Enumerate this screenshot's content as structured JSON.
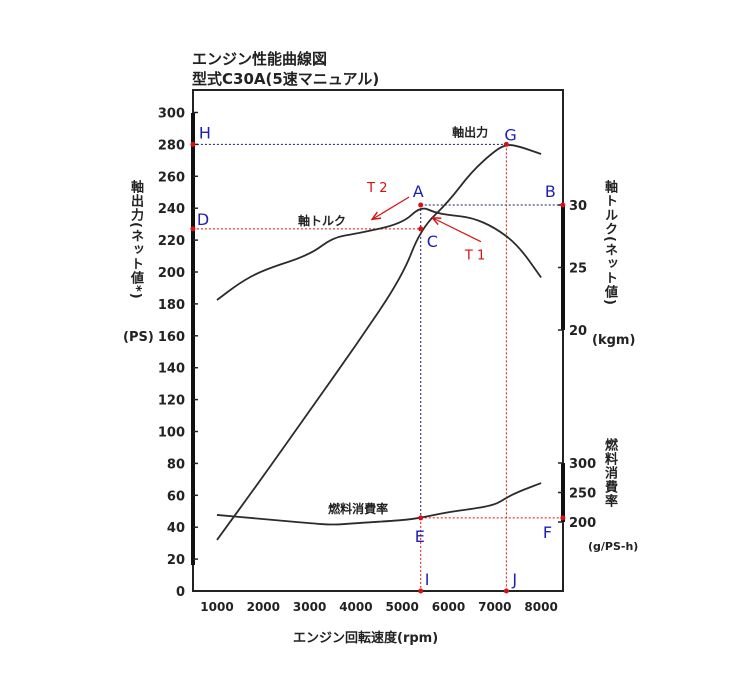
{
  "title_line1": "エンジン性能曲線図",
  "title_line2": "型式C30A(5速マニュアル)",
  "chart_data": {
    "type": "line",
    "title": "エンジン性能曲線図 型式C30A(5速マニュアル)",
    "xlabel": "エンジン回転速度(rpm)",
    "xlim": [
      480,
      8470
    ],
    "xticks": [
      1000,
      2000,
      3000,
      4000,
      5000,
      6000,
      7000,
      8000
    ],
    "y_left": {
      "label": "軸出力(ネット値*)",
      "unit": "(PS)",
      "ylim": [
        0,
        300
      ],
      "ticks": [
        0,
        20,
        40,
        60,
        80,
        100,
        120,
        140,
        160,
        180,
        200,
        220,
        240,
        260,
        280,
        300
      ]
    },
    "y_right_torque": {
      "label": "軸トルク(ネット値)",
      "unit": "(kgm)",
      "ticks": [
        20,
        25,
        30
      ]
    },
    "y_right_fuel": {
      "label": "燃料消費率",
      "unit": "(g/PS-h)",
      "ticks": [
        200,
        250,
        300
      ]
    },
    "grid": false,
    "series": [
      {
        "name": "軸出力",
        "axis": "power",
        "x": [
          1000,
          2000,
          3000,
          4000,
          5000,
          5400,
          6000,
          6500,
          7000,
          7250,
          7500,
          8000
        ],
        "y": [
          32,
          72,
          113,
          154,
          197,
          227,
          244,
          263,
          276,
          280,
          279,
          274
        ]
      },
      {
        "name": "軸トルク",
        "axis": "torque",
        "x": [
          1000,
          1500,
          2000,
          3000,
          3500,
          4000,
          5000,
          5400,
          5700,
          6000,
          6500,
          7000,
          7500,
          8000
        ],
        "y": [
          22.4,
          23.8,
          24.8,
          26.0,
          27.4,
          27.7,
          28.5,
          29.9,
          29.4,
          29.2,
          29.0,
          28.2,
          26.8,
          24.2
        ]
      },
      {
        "name": "燃料消費率",
        "axis": "fuel",
        "x": [
          1000,
          2000,
          3000,
          3500,
          4000,
          5000,
          5400,
          6000,
          6500,
          7000,
          7250,
          7500,
          8000
        ],
        "y": [
          212,
          205,
          198,
          195,
          198,
          203,
          207,
          217,
          222,
          229,
          241,
          251,
          266
        ]
      }
    ],
    "curve_labels": [
      {
        "text": "軸出力",
        "rpm": 6250,
        "axis": "power",
        "value": 285
      },
      {
        "text": "軸トルク",
        "rpm": 2750,
        "axis": "torque",
        "value": 28.4
      },
      {
        "text": "燃料消費率",
        "rpm": 3400,
        "axis": "fuel",
        "value": 215
      }
    ],
    "annotation_points": [
      {
        "label": "A",
        "rpm": 5400,
        "axis": "torque",
        "value": 30
      },
      {
        "label": "B",
        "rpm": 8470,
        "axis": "torque",
        "value": 30
      },
      {
        "label": "C",
        "rpm": 5400,
        "axis": "power",
        "value": 227
      },
      {
        "label": "D",
        "rpm": 480,
        "axis": "power",
        "value": 227
      },
      {
        "label": "E",
        "rpm": 5400,
        "axis": "fuel",
        "value": 207
      },
      {
        "label": "F",
        "rpm": 8470,
        "axis": "fuel",
        "value": 207
      },
      {
        "label": "G",
        "rpm": 7250,
        "axis": "power",
        "value": 280
      },
      {
        "label": "H",
        "rpm": 480,
        "axis": "power",
        "value": 280
      },
      {
        "label": "I",
        "rpm": 5400,
        "axis": "power",
        "value": 0
      },
      {
        "label": "J",
        "rpm": 7250,
        "axis": "power",
        "value": 0
      }
    ],
    "arrows": [
      {
        "label": "T 1",
        "from": {
          "rpm": 6700,
          "axis": "power",
          "value": 219
        },
        "to": {
          "rpm": 5650,
          "axis": "power",
          "value": 234
        }
      },
      {
        "label": "T 2",
        "from": {
          "rpm": 5150,
          "axis": "power",
          "value": 247
        },
        "to": {
          "rpm": 4350,
          "axis": "power",
          "value": 233
        }
      }
    ]
  },
  "colors": {
    "curve": "#2b2b2b",
    "label_blue": "#1f1fb8",
    "annotation_red": "#d81010",
    "guide_blue": "#1a1a66"
  }
}
